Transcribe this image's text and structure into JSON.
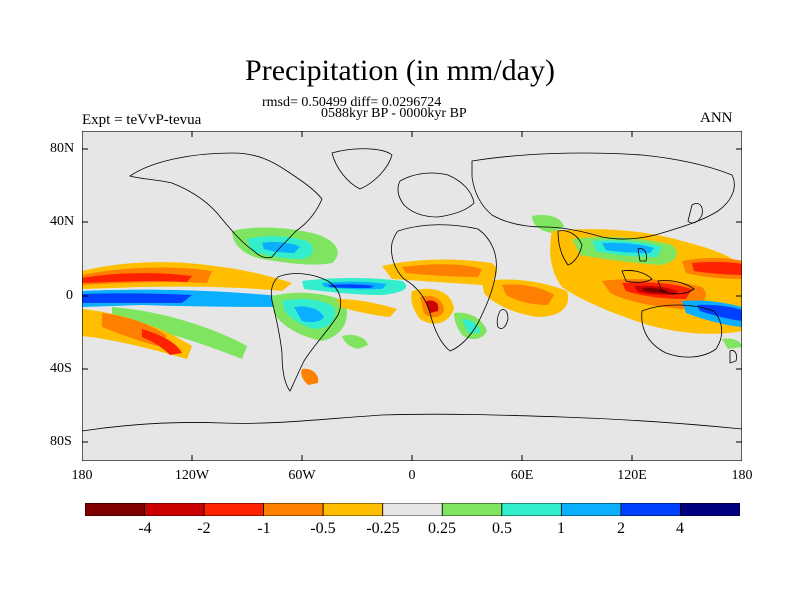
{
  "title": "Precipitation (in mm/day)",
  "stats": "rmsd= 0.50499 diff= 0.0296724",
  "period": "0588kyr BP - 0000kyr BP",
  "expt_label": "Expt = teVvP-tevua",
  "season": "ANN",
  "axes": {
    "y_ticks": [
      "80N",
      "40N",
      "0",
      "40S",
      "80S"
    ],
    "x_ticks": [
      "180",
      "120W",
      "60W",
      "0",
      "60E",
      "120E",
      "180"
    ]
  },
  "colorbar": {
    "labels": [
      "-4",
      "-2",
      "-1",
      "-0.5",
      "-0.25",
      "0.25",
      "0.5",
      "1",
      "2",
      "4"
    ],
    "colors": [
      "#7f0000",
      "#cc0000",
      "#ff2200",
      "#ff7f00",
      "#ffbf00",
      "#e6e6e6",
      "#7fe561",
      "#33eecc",
      "#0ab0ff",
      "#0040ff",
      "#000080"
    ]
  },
  "chart_data": {
    "type": "heatmap",
    "title": "Precipitation (in mm/day)",
    "subtitle": [
      "rmsd= 0.50499 diff= 0.0296724",
      "0588kyr BP - 0000kyr BP"
    ],
    "left_label": "Expt = teVvP-tevua",
    "right_label": "ANN",
    "xlabel": "",
    "ylabel": "",
    "x_ticks": [
      "180",
      "120W",
      "60W",
      "0",
      "60E",
      "120E",
      "180"
    ],
    "y_ticks": [
      "80N",
      "40N",
      "0",
      "40S",
      "80S"
    ],
    "xlim": [
      -180,
      180
    ],
    "ylim": [
      -90,
      90
    ],
    "contour_levels": [
      -4,
      -2,
      -1,
      -0.5,
      -0.25,
      0.25,
      0.5,
      1,
      2,
      4
    ],
    "units": "mm/day"
  }
}
